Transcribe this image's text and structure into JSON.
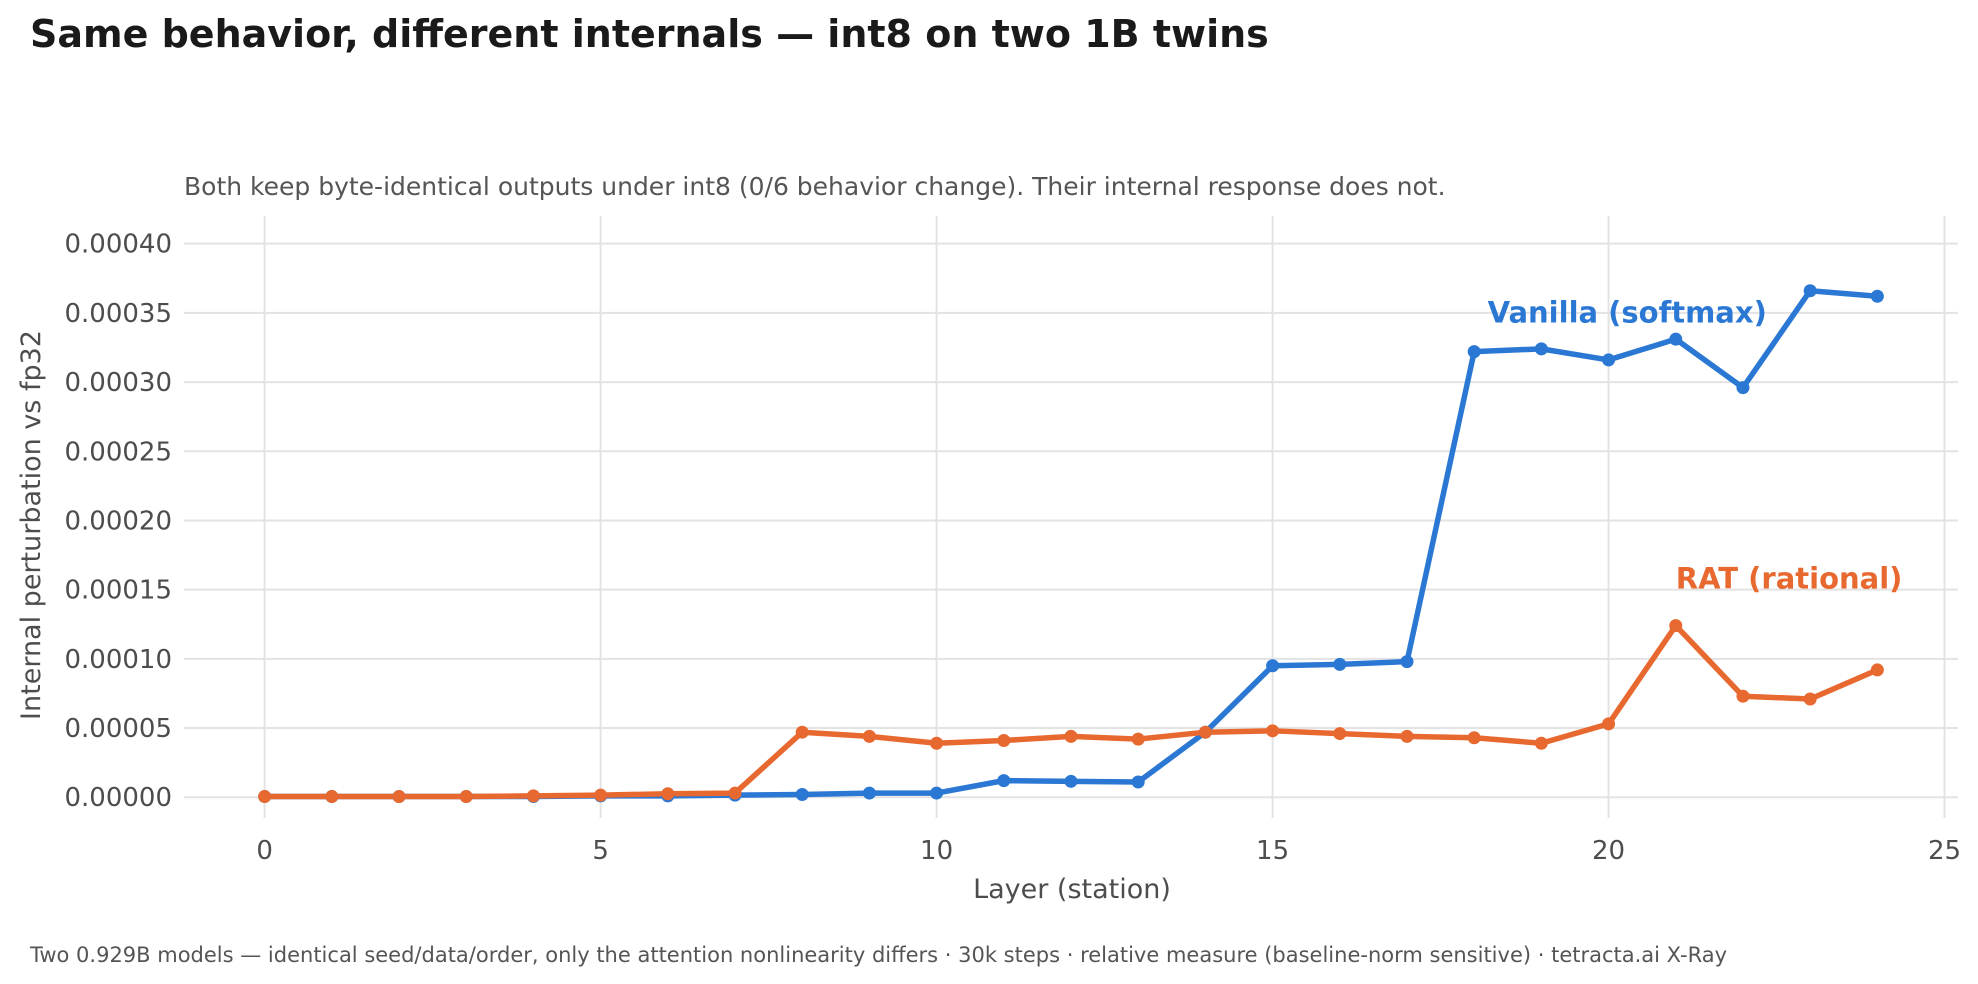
{
  "title": "Same behavior, different internals — int8 on two 1B twins",
  "subtitle": "Both keep byte-identical outputs under int8 (0/6 behavior change). Their internal response does not.",
  "footer": "Two 0.929B models — identical seed/data/order, only the attention nonlinearity differs · 30k steps · relative measure (baseline-norm sensitive) · tetracta.ai X-Ray",
  "chart_data": {
    "type": "line",
    "xlabel": "Layer (station)",
    "ylabel": "Internal perturbation vs fp32",
    "xlim": [
      -1.2,
      25.2
    ],
    "ylim": [
      -1.5e-05,
      0.00042
    ],
    "x_ticks": [
      0,
      5,
      10,
      15,
      20,
      25
    ],
    "x_tick_labels": [
      "0",
      "5",
      "10",
      "15",
      "20",
      "25"
    ],
    "y_ticks": [
      0,
      5e-05,
      0.0001,
      0.00015,
      0.0002,
      0.00025,
      0.0003,
      0.00035,
      0.0004
    ],
    "y_tick_labels": [
      "0.00000",
      "0.00005",
      "0.00010",
      "0.00015",
      "0.00020",
      "0.00025",
      "0.00030",
      "0.00035",
      "0.00040"
    ],
    "grid": true,
    "legend": "inline labels",
    "x": [
      0,
      1,
      2,
      3,
      4,
      5,
      6,
      7,
      8,
      9,
      10,
      11,
      12,
      13,
      14,
      15,
      16,
      17,
      18,
      19,
      20,
      21,
      22,
      23,
      24
    ],
    "series": [
      {
        "name": "Vanilla (softmax)",
        "color": "#2b78d4",
        "label_at": [
          18.2,
          0.000343
        ],
        "values": [
          5e-07,
          5e-07,
          5e-07,
          5e-07,
          5e-07,
          1e-06,
          1e-06,
          1.5e-06,
          2e-06,
          3e-06,
          3e-06,
          1.2e-05,
          1.15e-05,
          1.1e-05,
          4.7e-05,
          9.5e-05,
          9.6e-05,
          9.8e-05,
          0.000322,
          0.000324,
          0.000316,
          0.000331,
          0.000296,
          0.000366,
          0.000362
        ]
      },
      {
        "name": "RAT (rational)",
        "color": "#e8692f",
        "label_at": [
          21.0,
          0.000151
        ],
        "values": [
          5e-07,
          5e-07,
          5e-07,
          5e-07,
          1e-06,
          1.5e-06,
          2.5e-06,
          3e-06,
          4.7e-05,
          4.4e-05,
          3.9e-05,
          4.1e-05,
          4.4e-05,
          4.2e-05,
          4.7e-05,
          4.8e-05,
          4.6e-05,
          4.4e-05,
          4.3e-05,
          3.9e-05,
          5.3e-05,
          0.000124,
          7.3e-05,
          7.1e-05,
          9.2e-05
        ]
      }
    ]
  }
}
